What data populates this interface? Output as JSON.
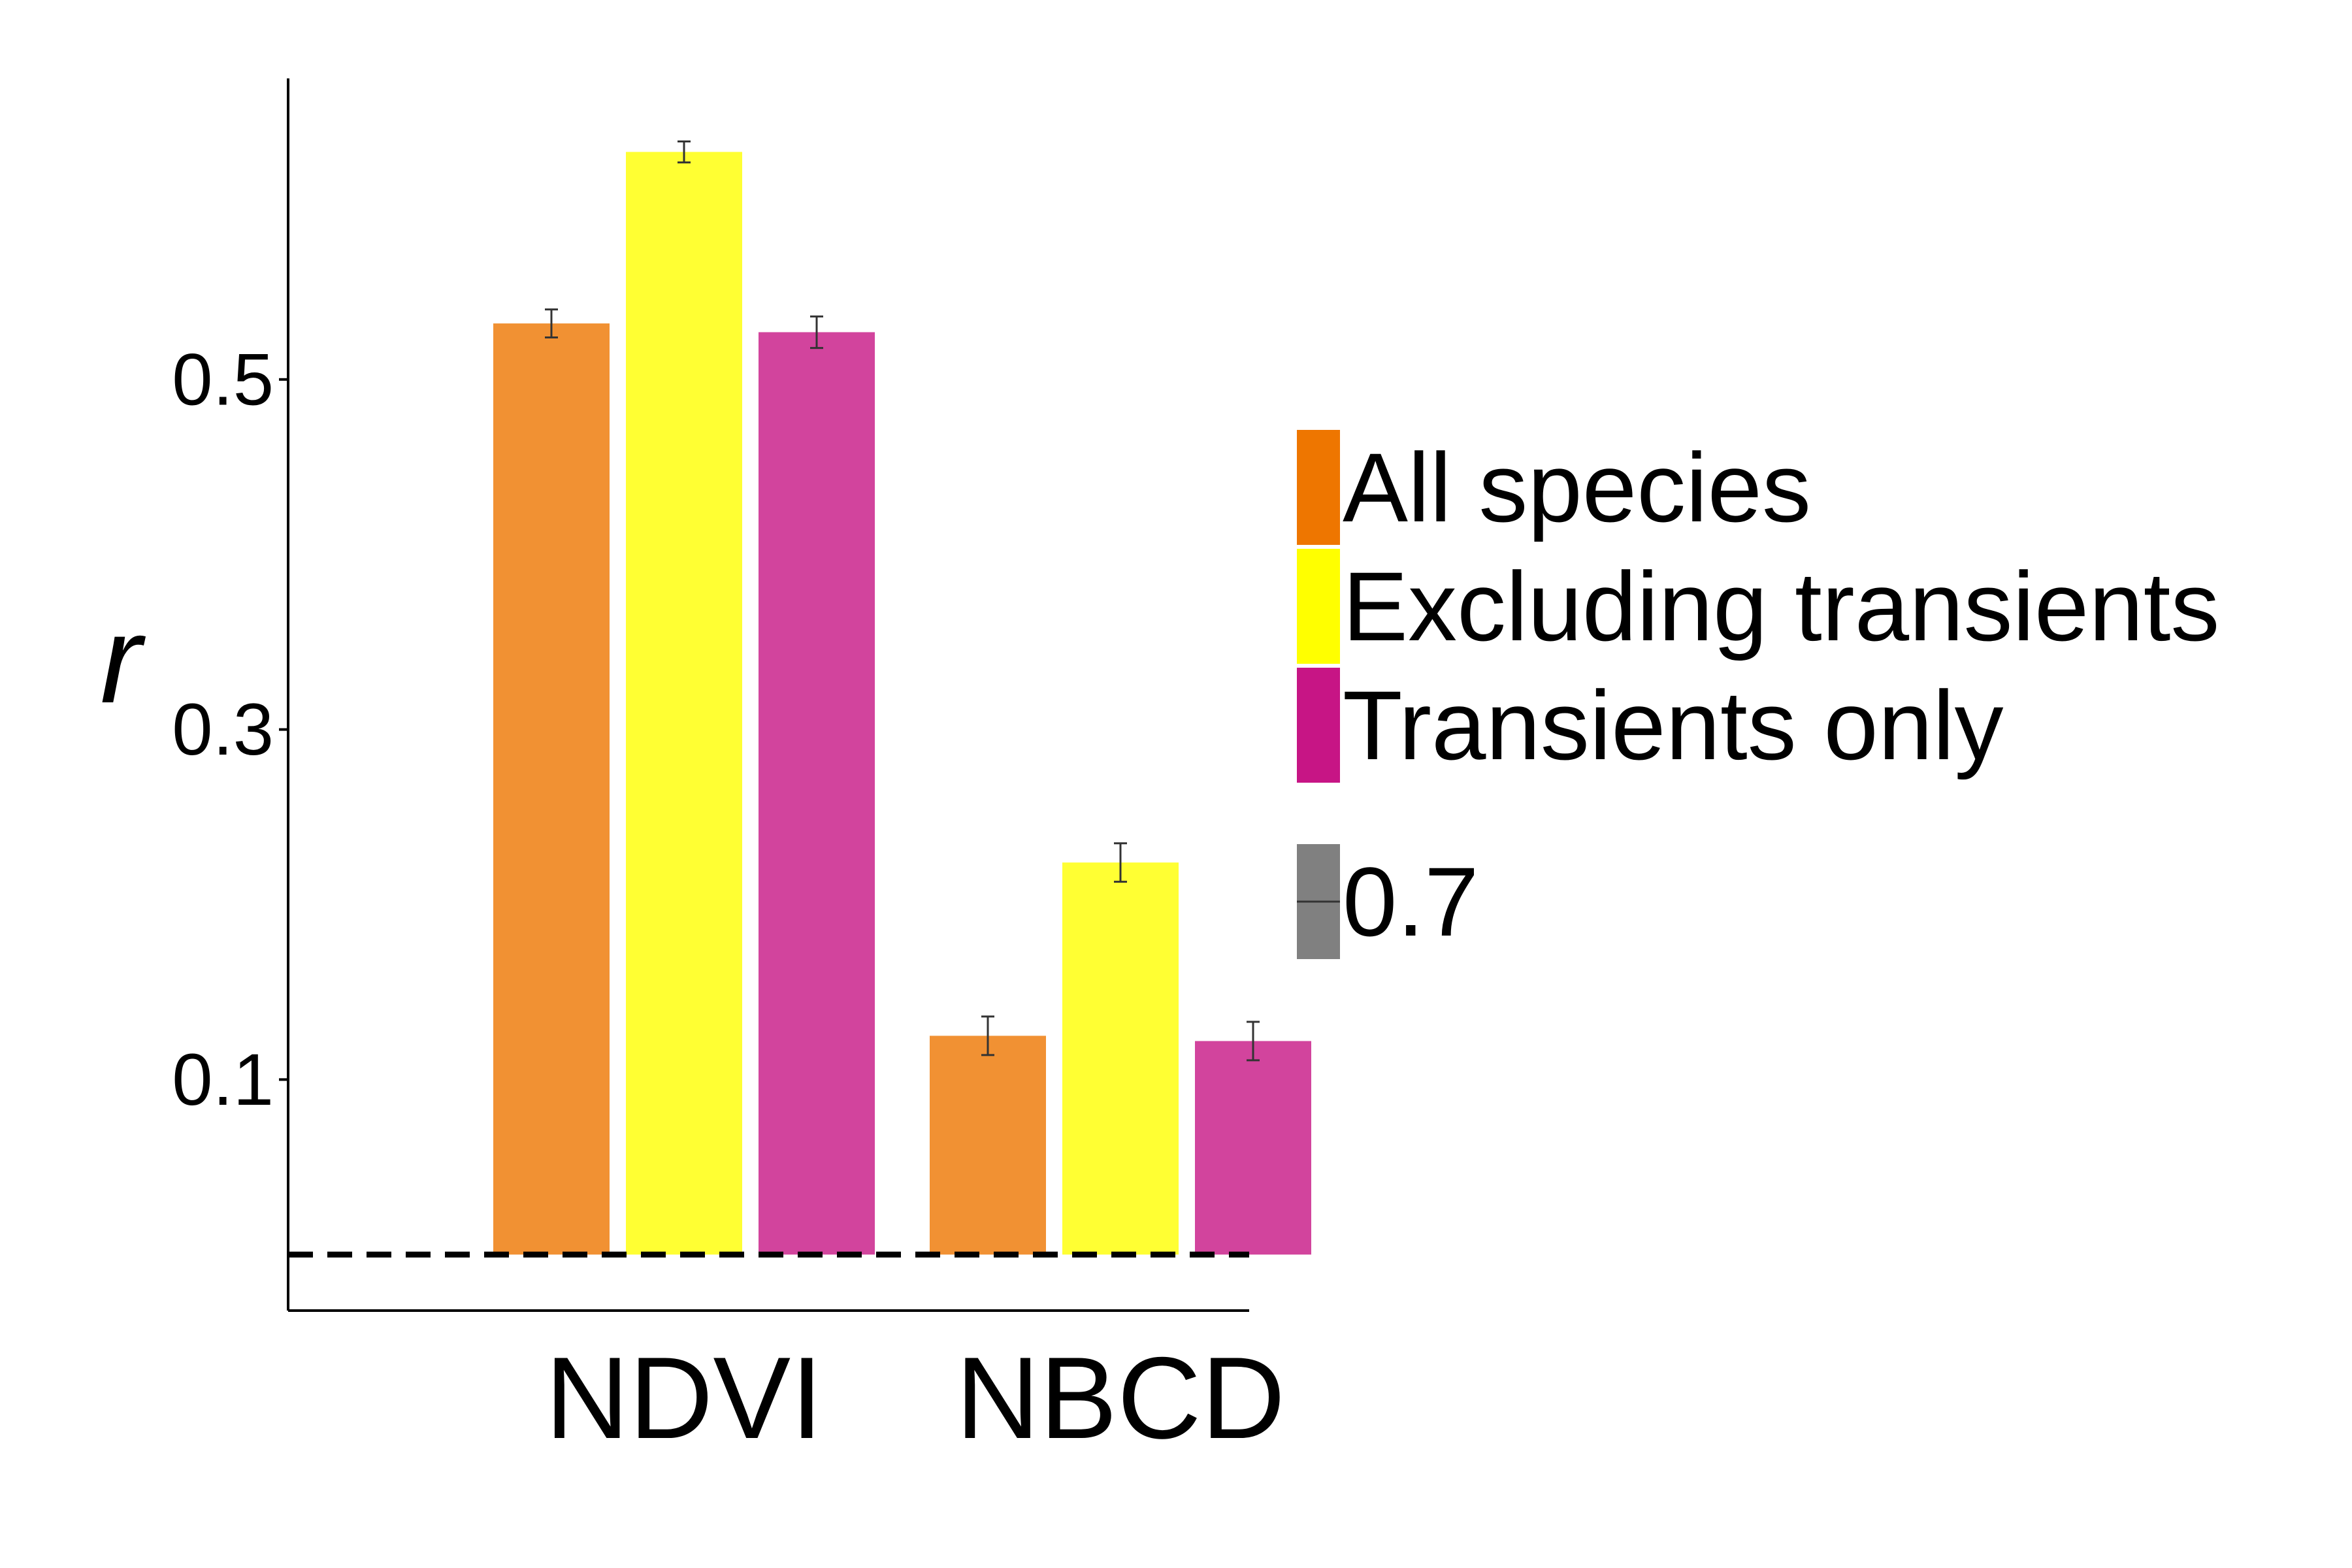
{
  "chart_data": {
    "type": "bar",
    "title": "",
    "xlabel": "",
    "ylabel": "r",
    "categories": [
      "NDVI",
      "NBCD"
    ],
    "series": [
      {
        "name": "All species",
        "color": "#EE7600",
        "values": [
          0.532,
          0.125
        ],
        "error": [
          0.008,
          0.011
        ]
      },
      {
        "name": "Excluding transients",
        "color": "#FFFF00",
        "values": [
          0.63,
          0.224
        ],
        "error": [
          0.006,
          0.011
        ]
      },
      {
        "name": "Transients only",
        "color": "#C71585",
        "values": [
          0.527,
          0.122
        ],
        "error": [
          0.009,
          0.011
        ]
      }
    ],
    "fill_alpha": 0.8,
    "yticks": [
      0.1,
      0.3,
      0.5
    ],
    "ytick_labels": [
      "0.1",
      "0.3",
      "0.5"
    ],
    "ylim": [
      -0.032,
      0.672
    ],
    "reference_line": {
      "y": 0,
      "style": "dashed"
    },
    "grid": false,
    "legend": {
      "position": "right",
      "alpha_entry": {
        "label": "0.7",
        "color": "#808080"
      }
    }
  }
}
